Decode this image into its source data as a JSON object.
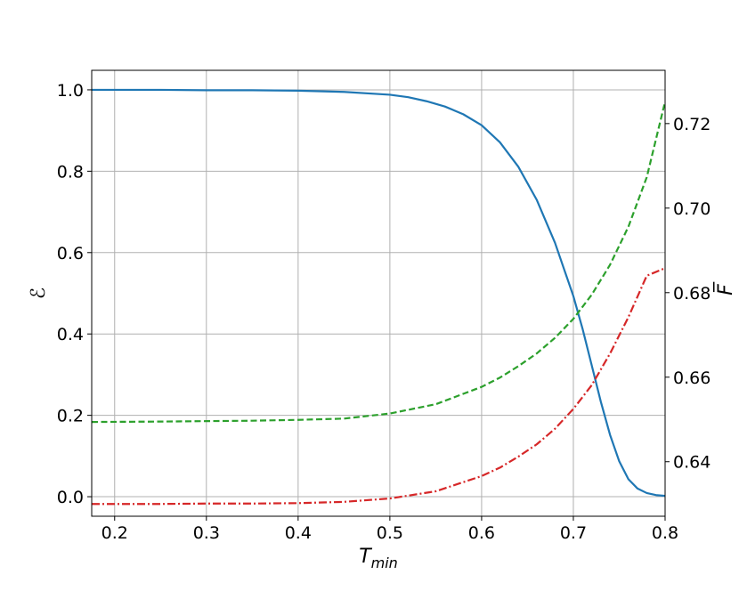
{
  "chart_data": {
    "type": "line",
    "title": "",
    "grid": true,
    "legend": "none",
    "x_axis": {
      "label_main": "T",
      "label_sub": "min",
      "range": [
        0.175,
        0.8
      ],
      "ticks": [
        0.2,
        0.3,
        0.4,
        0.5,
        0.6,
        0.7,
        0.8
      ],
      "tick_labels": [
        "0.2",
        "0.3",
        "0.4",
        "0.5",
        "0.6",
        "0.7",
        "0.8"
      ]
    },
    "y_left": {
      "label": "ℰ",
      "range": [
        -0.048,
        1.048
      ],
      "ticks": [
        0.0,
        0.2,
        0.4,
        0.6,
        0.8,
        1.0
      ],
      "tick_labels": [
        "0.0",
        "0.2",
        "0.4",
        "0.6",
        "0.8",
        "1.0"
      ]
    },
    "y_right": {
      "label": "F̅",
      "range": [
        0.6271,
        0.7326
      ],
      "ticks": [
        0.64,
        0.66,
        0.68,
        0.7,
        0.72
      ],
      "tick_labels": [
        "0.64",
        "0.66",
        "0.68",
        "0.70",
        "0.72"
      ]
    },
    "series": [
      {
        "axis": "left",
        "color": "#1f77b4",
        "style": "solid",
        "x": [
          0.175,
          0.2,
          0.25,
          0.3,
          0.35,
          0.4,
          0.45,
          0.5,
          0.52,
          0.54,
          0.56,
          0.58,
          0.6,
          0.62,
          0.64,
          0.66,
          0.68,
          0.7,
          0.71,
          0.72,
          0.73,
          0.74,
          0.75,
          0.76,
          0.77,
          0.78,
          0.79,
          0.8
        ],
        "y": [
          1.0,
          1.0,
          1.0,
          0.999,
          0.999,
          0.998,
          0.995,
          0.988,
          0.982,
          0.972,
          0.959,
          0.94,
          0.913,
          0.871,
          0.811,
          0.73,
          0.624,
          0.493,
          0.413,
          0.323,
          0.233,
          0.152,
          0.087,
          0.043,
          0.02,
          0.009,
          0.004,
          0.002
        ]
      },
      {
        "axis": "right",
        "color": "#2ca02c",
        "style": "dashed",
        "x": [
          0.175,
          0.25,
          0.3,
          0.35,
          0.4,
          0.45,
          0.5,
          0.55,
          0.6,
          0.62,
          0.64,
          0.66,
          0.68,
          0.7,
          0.72,
          0.74,
          0.76,
          0.78,
          0.8
        ],
        "y": [
          0.6494,
          0.6495,
          0.6496,
          0.6497,
          0.6499,
          0.6502,
          0.6514,
          0.6536,
          0.6577,
          0.6599,
          0.6626,
          0.6656,
          0.6693,
          0.6738,
          0.6795,
          0.6866,
          0.6956,
          0.7073,
          0.7252
        ]
      },
      {
        "axis": "right",
        "color": "#d62728",
        "style": "dashdot",
        "x": [
          0.175,
          0.25,
          0.3,
          0.35,
          0.4,
          0.45,
          0.5,
          0.55,
          0.6,
          0.62,
          0.64,
          0.66,
          0.68,
          0.7,
          0.72,
          0.74,
          0.76,
          0.78,
          0.8
        ],
        "y": [
          0.63,
          0.63,
          0.6301,
          0.6301,
          0.6302,
          0.6305,
          0.6313,
          0.633,
          0.6366,
          0.6386,
          0.6412,
          0.6441,
          0.6478,
          0.6525,
          0.6581,
          0.6656,
          0.6742,
          0.684,
          0.6858
        ]
      }
    ]
  }
}
